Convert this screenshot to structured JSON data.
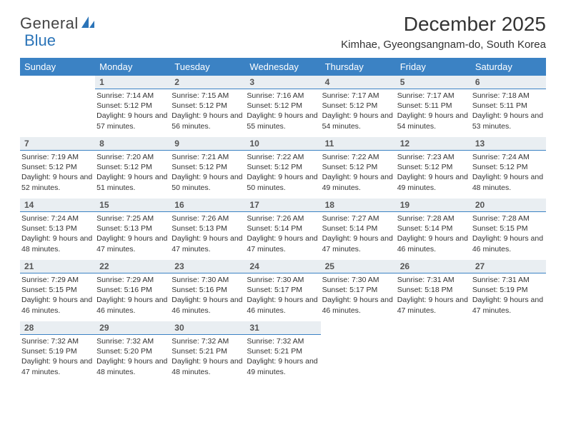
{
  "logo": {
    "text1": "General",
    "text2": "Blue"
  },
  "title": "December 2025",
  "location": "Kimhae, Gyeongsangnam-do, South Korea",
  "header_bg": "#3b82c4",
  "header_fg": "#ffffff",
  "daynum_bg": "#e9eef2",
  "daynum_border": "#3b82c4",
  "logo_blue": "#2b74b8",
  "weekdays": [
    "Sunday",
    "Monday",
    "Tuesday",
    "Wednesday",
    "Thursday",
    "Friday",
    "Saturday"
  ],
  "weeks": [
    [
      null,
      {
        "n": "1",
        "sr": "7:14 AM",
        "ss": "5:12 PM",
        "dl": "9 hours and 57 minutes."
      },
      {
        "n": "2",
        "sr": "7:15 AM",
        "ss": "5:12 PM",
        "dl": "9 hours and 56 minutes."
      },
      {
        "n": "3",
        "sr": "7:16 AM",
        "ss": "5:12 PM",
        "dl": "9 hours and 55 minutes."
      },
      {
        "n": "4",
        "sr": "7:17 AM",
        "ss": "5:12 PM",
        "dl": "9 hours and 54 minutes."
      },
      {
        "n": "5",
        "sr": "7:17 AM",
        "ss": "5:11 PM",
        "dl": "9 hours and 54 minutes."
      },
      {
        "n": "6",
        "sr": "7:18 AM",
        "ss": "5:11 PM",
        "dl": "9 hours and 53 minutes."
      }
    ],
    [
      {
        "n": "7",
        "sr": "7:19 AM",
        "ss": "5:12 PM",
        "dl": "9 hours and 52 minutes."
      },
      {
        "n": "8",
        "sr": "7:20 AM",
        "ss": "5:12 PM",
        "dl": "9 hours and 51 minutes."
      },
      {
        "n": "9",
        "sr": "7:21 AM",
        "ss": "5:12 PM",
        "dl": "9 hours and 50 minutes."
      },
      {
        "n": "10",
        "sr": "7:22 AM",
        "ss": "5:12 PM",
        "dl": "9 hours and 50 minutes."
      },
      {
        "n": "11",
        "sr": "7:22 AM",
        "ss": "5:12 PM",
        "dl": "9 hours and 49 minutes."
      },
      {
        "n": "12",
        "sr": "7:23 AM",
        "ss": "5:12 PM",
        "dl": "9 hours and 49 minutes."
      },
      {
        "n": "13",
        "sr": "7:24 AM",
        "ss": "5:12 PM",
        "dl": "9 hours and 48 minutes."
      }
    ],
    [
      {
        "n": "14",
        "sr": "7:24 AM",
        "ss": "5:13 PM",
        "dl": "9 hours and 48 minutes."
      },
      {
        "n": "15",
        "sr": "7:25 AM",
        "ss": "5:13 PM",
        "dl": "9 hours and 47 minutes."
      },
      {
        "n": "16",
        "sr": "7:26 AM",
        "ss": "5:13 PM",
        "dl": "9 hours and 47 minutes."
      },
      {
        "n": "17",
        "sr": "7:26 AM",
        "ss": "5:14 PM",
        "dl": "9 hours and 47 minutes."
      },
      {
        "n": "18",
        "sr": "7:27 AM",
        "ss": "5:14 PM",
        "dl": "9 hours and 47 minutes."
      },
      {
        "n": "19",
        "sr": "7:28 AM",
        "ss": "5:14 PM",
        "dl": "9 hours and 46 minutes."
      },
      {
        "n": "20",
        "sr": "7:28 AM",
        "ss": "5:15 PM",
        "dl": "9 hours and 46 minutes."
      }
    ],
    [
      {
        "n": "21",
        "sr": "7:29 AM",
        "ss": "5:15 PM",
        "dl": "9 hours and 46 minutes."
      },
      {
        "n": "22",
        "sr": "7:29 AM",
        "ss": "5:16 PM",
        "dl": "9 hours and 46 minutes."
      },
      {
        "n": "23",
        "sr": "7:30 AM",
        "ss": "5:16 PM",
        "dl": "9 hours and 46 minutes."
      },
      {
        "n": "24",
        "sr": "7:30 AM",
        "ss": "5:17 PM",
        "dl": "9 hours and 46 minutes."
      },
      {
        "n": "25",
        "sr": "7:30 AM",
        "ss": "5:17 PM",
        "dl": "9 hours and 46 minutes."
      },
      {
        "n": "26",
        "sr": "7:31 AM",
        "ss": "5:18 PM",
        "dl": "9 hours and 47 minutes."
      },
      {
        "n": "27",
        "sr": "7:31 AM",
        "ss": "5:19 PM",
        "dl": "9 hours and 47 minutes."
      }
    ],
    [
      {
        "n": "28",
        "sr": "7:32 AM",
        "ss": "5:19 PM",
        "dl": "9 hours and 47 minutes."
      },
      {
        "n": "29",
        "sr": "7:32 AM",
        "ss": "5:20 PM",
        "dl": "9 hours and 48 minutes."
      },
      {
        "n": "30",
        "sr": "7:32 AM",
        "ss": "5:21 PM",
        "dl": "9 hours and 48 minutes."
      },
      {
        "n": "31",
        "sr": "7:32 AM",
        "ss": "5:21 PM",
        "dl": "9 hours and 49 minutes."
      },
      null,
      null,
      null
    ]
  ],
  "labels": {
    "sunrise": "Sunrise:",
    "sunset": "Sunset:",
    "daylight": "Daylight:"
  }
}
